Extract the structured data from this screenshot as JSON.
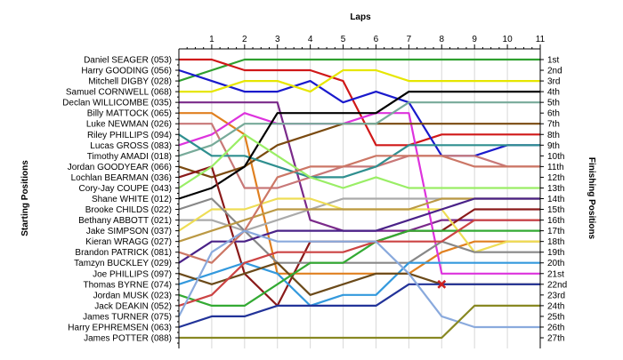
{
  "chart_data": {
    "type": "line",
    "title": "Laps",
    "ylabel_left": "Starting Positions",
    "ylabel_right": "Finishing Positions",
    "x": [
      0,
      1,
      2,
      3,
      4,
      5,
      6,
      7,
      8,
      9,
      10,
      11
    ],
    "xticks": [
      "1",
      "2",
      "3",
      "4",
      "5",
      "6",
      "7",
      "8",
      "9",
      "10",
      "11"
    ],
    "y_range": [
      1,
      27
    ],
    "finishing_labels": [
      "1st",
      "2nd",
      "3rd",
      "4th",
      "5th",
      "6th",
      "7th",
      "8th",
      "9th",
      "10th",
      "11th",
      "12th",
      "13th",
      "14th",
      "15th",
      "16th",
      "17th",
      "18th",
      "19th",
      "20th",
      "21st",
      "22nd",
      "23rd",
      "24th",
      "25th",
      "26th",
      "27th"
    ],
    "grid": true,
    "series": [
      {
        "name": "Mitchell DIGBY (028)",
        "color": "#2ea02e",
        "values": [
          3,
          2,
          1,
          1,
          1,
          1,
          1,
          1,
          1,
          1,
          1,
          1
        ]
      },
      {
        "name": "Daniel SEAGER (053)",
        "color": "#d01818",
        "values": [
          1,
          1,
          2,
          2,
          2,
          3,
          9,
          9,
          8,
          8,
          8,
          8
        ]
      },
      {
        "name": "Harry GOODING (056)",
        "color": "#1a1acc",
        "values": [
          2,
          3,
          4,
          4,
          3,
          5,
          4,
          5,
          10,
          10,
          9,
          9
        ]
      },
      {
        "name": "Samuel CORNWELL (068)",
        "color": "#e6e600",
        "values": [
          4,
          4,
          3,
          3,
          4,
          2,
          2,
          3,
          3,
          3,
          3,
          3
        ]
      },
      {
        "name": "Declan WILLICOMBE (035)",
        "color": "#7a2a8a",
        "values": [
          5,
          5,
          5,
          5,
          16,
          17,
          17,
          17,
          16,
          16,
          16,
          16
        ]
      },
      {
        "name": "Billy MATTOCK (065)",
        "color": "#e08020",
        "values": [
          6,
          6,
          8,
          21,
          21,
          21,
          21,
          21,
          19,
          18,
          18,
          18
        ]
      },
      {
        "name": "Lucas GROSS (083)",
        "color": "#dd33dd",
        "values": [
          9,
          8,
          6,
          7,
          7,
          7,
          6,
          6,
          21,
          21,
          21,
          21
        ]
      },
      {
        "name": "Luke NEWMAN (026)",
        "color": "#c87878",
        "values": [
          7,
          7,
          13,
          13,
          12,
          11,
          11,
          10,
          10,
          10,
          11,
          11
        ]
      },
      {
        "name": "Jordan GOODYEAR (066)",
        "color": "#7a4a10",
        "values": [
          11,
          12,
          11,
          9,
          8,
          7,
          7,
          7,
          7,
          7,
          7,
          7
        ]
      },
      {
        "name": "Timothy AMADI (018)",
        "color": "#77aa99",
        "values": [
          10,
          9,
          7,
          7,
          7,
          7,
          7,
          5,
          5,
          5,
          5,
          5
        ]
      },
      {
        "name": "Riley PHILLIPS (094)",
        "color": "#2f8f8f",
        "values": [
          8,
          10,
          10,
          11,
          12,
          12,
          11,
          9,
          9,
          9,
          9,
          9
        ]
      },
      {
        "name": "Shane WHITE (012)",
        "color": "#000000",
        "values": [
          14,
          13,
          11,
          6,
          6,
          6,
          6,
          4,
          4,
          4,
          4,
          4
        ]
      },
      {
        "name": "Bethany ABBOTT (021)",
        "color": "#aaaaaa",
        "values": [
          16,
          16,
          17,
          16,
          15,
          14,
          14,
          14,
          14,
          14,
          14,
          14
        ]
      },
      {
        "name": "Lochlan BEARMAN (036)",
        "color": "#8a1a1a",
        "values": [
          12,
          11,
          21,
          24,
          18,
          18,
          18,
          17,
          17,
          15,
          15,
          15
        ]
      },
      {
        "name": "Jake SIMPSON (037)",
        "color": "#eedd55",
        "values": [
          17,
          15,
          15,
          14,
          14,
          15,
          15,
          15,
          15,
          19,
          18,
          18
        ]
      },
      {
        "name": "Cory-Jay COUPE (043)",
        "color": "#9aee66",
        "values": [
          13,
          11,
          8,
          10,
          12,
          13,
          12,
          13,
          13,
          13,
          13,
          13
        ]
      },
      {
        "name": "Brooke CHILDS (022)",
        "color": "#888888",
        "values": [
          15,
          14,
          17,
          20,
          20,
          20,
          20,
          20,
          18,
          19,
          19,
          19
        ]
      },
      {
        "name": "Kieran WRAGG (027)",
        "color": "#bb9944",
        "values": [
          18,
          17,
          16,
          15,
          15,
          15,
          15,
          15,
          14,
          14,
          14,
          14
        ]
      },
      {
        "name": "Tamzyn BUCKLEY (029)",
        "color": "#4a2288",
        "values": [
          20,
          18,
          18,
          17,
          17,
          17,
          17,
          16,
          15,
          14,
          14,
          14
        ]
      },
      {
        "name": "Brandon PATRICK (081)",
        "color": "#cc7766",
        "values": [
          19,
          20,
          17,
          12,
          11,
          11,
          10,
          10,
          10,
          11,
          11,
          11
        ]
      },
      {
        "name": "Thomas BYRNE (074)",
        "color": "#3399dd",
        "values": [
          22,
          21,
          20,
          21,
          24,
          23,
          23,
          20,
          20,
          20,
          20,
          20
        ]
      },
      {
        "name": "Joe PHILLIPS (097)",
        "color": "#6b4a1a",
        "values": [
          21,
          22,
          21,
          20,
          23,
          22,
          21,
          21,
          22,
          22,
          22,
          22
        ]
      },
      {
        "name": "Jordan MUSK (023)",
        "color": "#33aa33",
        "values": [
          23,
          24,
          24,
          22,
          20,
          20,
          18,
          17,
          17,
          17,
          17,
          17
        ]
      },
      {
        "name": "Jack DEAKIN (052)",
        "color": "#cc4444",
        "values": [
          24,
          23,
          20,
          19,
          19,
          19,
          18,
          18,
          18,
          16,
          16,
          16
        ]
      },
      {
        "name": "Harry EPHREMSEN (063)",
        "color": "#223399",
        "values": [
          26,
          25,
          25,
          24,
          24,
          24,
          24,
          22,
          22,
          22,
          22,
          22
        ]
      },
      {
        "name": "James TURNER (075)",
        "color": "#8aaadd",
        "values": [
          25,
          19,
          17,
          18,
          18,
          18,
          18,
          21,
          25,
          26,
          26,
          26
        ]
      },
      {
        "name": "James POTTER (088)",
        "color": "#888822",
        "values": [
          27,
          27,
          27,
          27,
          27,
          27,
          27,
          27,
          27,
          24,
          24,
          24
        ]
      }
    ],
    "marker": {
      "series": "Joe PHILLIPS (097)",
      "x": 8,
      "y": 22,
      "symbol": "x",
      "color": "#cc2020"
    }
  }
}
